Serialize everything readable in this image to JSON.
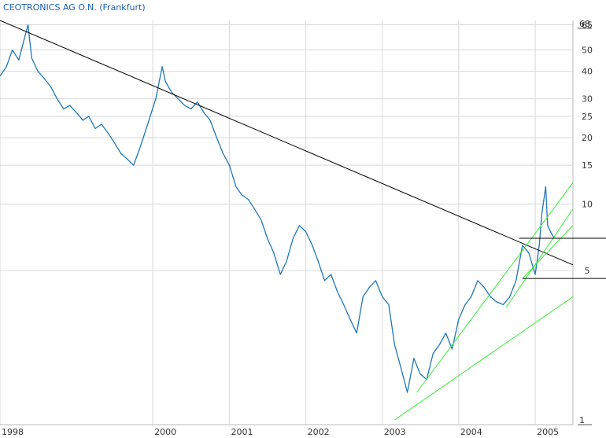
{
  "chart_data": {
    "type": "line",
    "title": "CEOTRONICS AG O.N. (Frankfurt)",
    "xlabel": "",
    "ylabel": "",
    "y_scale": "log",
    "ylim": [
      1,
      68
    ],
    "xlim": [
      "1998-01-01",
      "2005-06-30"
    ],
    "grid": true,
    "x_ticks": [
      "1998",
      "2000",
      "2001",
      "2002",
      "2003",
      "2004",
      "2005"
    ],
    "y_ticks": [
      1,
      5,
      10,
      15,
      20,
      25,
      30,
      40,
      50,
      65,
      68
    ],
    "series": [
      {
        "name": "",
        "color": "#1f77b4",
        "x": [
          "1998-01-01",
          "1998-02-01",
          "1998-03-01",
          "1998-04-01",
          "1998-05-01",
          "1998-05-15",
          "1998-06-01",
          "1998-07-01",
          "1998-08-01",
          "1998-09-01",
          "1998-10-01",
          "1998-11-01",
          "1998-12-01",
          "1999-01-01",
          "1999-02-01",
          "1999-03-01",
          "1999-04-01",
          "1999-05-01",
          "1999-06-01",
          "1999-07-01",
          "1999-08-01",
          "1999-09-01",
          "1999-10-01",
          "1999-11-01",
          "1999-12-01",
          "2000-01-15",
          "2000-02-15",
          "2000-03-01",
          "2000-04-01",
          "2000-05-01",
          "2000-06-01",
          "2000-07-01",
          "2000-08-01",
          "2000-09-01",
          "2000-10-01",
          "2000-11-01",
          "2000-12-01",
          "2001-01-01",
          "2001-02-01",
          "2001-03-01",
          "2001-04-01",
          "2001-05-01",
          "2001-06-01",
          "2001-07-01",
          "2001-08-01",
          "2001-09-01",
          "2001-10-01",
          "2001-11-01",
          "2001-12-01",
          "2002-01-01",
          "2002-02-01",
          "2002-03-01",
          "2002-04-01",
          "2002-05-01",
          "2002-06-01",
          "2002-07-01",
          "2002-08-01",
          "2002-09-01",
          "2002-10-01",
          "2002-11-01",
          "2002-12-01",
          "2003-01-01",
          "2003-02-01",
          "2003-03-01",
          "2003-04-01",
          "2003-05-01",
          "2003-06-01",
          "2003-07-01",
          "2003-08-01",
          "2003-09-01",
          "2003-10-01",
          "2003-11-01",
          "2003-12-01",
          "2004-01-01",
          "2004-02-01",
          "2004-03-01",
          "2004-04-01",
          "2004-05-01",
          "2004-06-01",
          "2004-07-01",
          "2004-08-01",
          "2004-09-01",
          "2004-10-01",
          "2004-11-01",
          "2004-12-01",
          "2005-01-01",
          "2005-01-20",
          "2005-02-01",
          "2005-02-20",
          "2005-03-01",
          "2005-03-15",
          "2005-04-01"
        ],
        "values": [
          38,
          42,
          50,
          45,
          58,
          65,
          46,
          40,
          37,
          34,
          30,
          27,
          28,
          26,
          24,
          25,
          22,
          23,
          21,
          19,
          17,
          16,
          15,
          18,
          22,
          30,
          42,
          36,
          32,
          30,
          28,
          27,
          29,
          26,
          24,
          20,
          17,
          15,
          12,
          11,
          10.5,
          9.5,
          8.5,
          7,
          6,
          4.8,
          5.5,
          7,
          8,
          7.5,
          6.5,
          5.5,
          4.5,
          4.8,
          4,
          3.5,
          3,
          2.6,
          3.8,
          4.2,
          4.5,
          3.8,
          3.5,
          2.3,
          1.8,
          1.4,
          2.0,
          1.7,
          1.6,
          2.1,
          2.3,
          2.6,
          2.2,
          3.0,
          3.5,
          3.8,
          4.5,
          4.2,
          3.8,
          3.6,
          3.5,
          3.8,
          4.5,
          6.5,
          6.0,
          4.8,
          6.5,
          9.0,
          12.0,
          8.0,
          7.5,
          7.0
        ]
      }
    ],
    "trendlines": [
      {
        "color": "#000000",
        "x": [
          "1998-01-01",
          "2005-06-30"
        ],
        "values": [
          68,
          5.3
        ]
      },
      {
        "color": "#33ee33",
        "x": [
          "2003-03-01",
          "2005-06-30"
        ],
        "values": [
          1.05,
          3.8
        ]
      },
      {
        "color": "#33ee33",
        "x": [
          "2003-06-15",
          "2005-06-30"
        ],
        "values": [
          1.4,
          12.5
        ]
      },
      {
        "color": "#33ee33",
        "x": [
          "2004-08-15",
          "2005-06-30"
        ],
        "values": [
          3.4,
          9.5
        ]
      },
      {
        "color": "#33ee33",
        "x": [
          "2004-11-01",
          "2005-06-30"
        ],
        "values": [
          4.6,
          8.0
        ]
      }
    ],
    "horizontal_lines": [
      {
        "color": "#000000",
        "x_start": "2004-10-15",
        "value": 7.0
      },
      {
        "color": "#000000",
        "x_start": "2004-11-01",
        "value": 4.6
      }
    ]
  }
}
